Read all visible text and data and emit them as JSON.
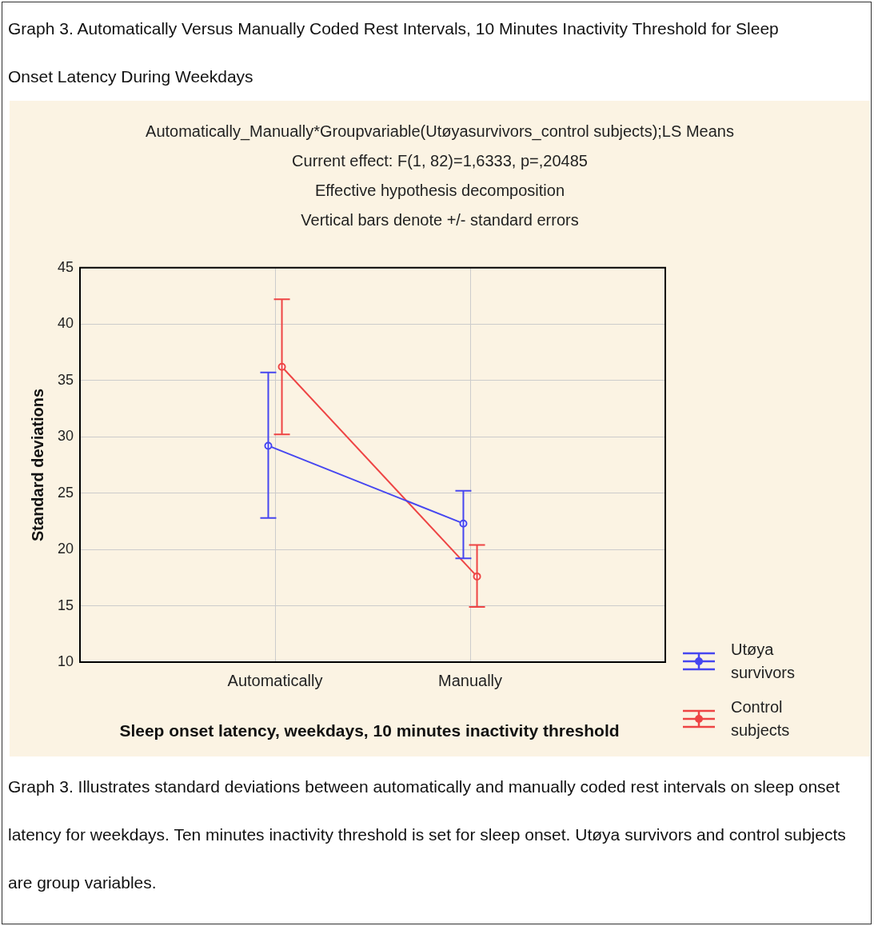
{
  "chart_data": {
    "type": "line",
    "title": "Graph 3. Automatically Versus Manually Coded Rest Intervals, 10 Minutes Inactivity Threshold for Sleep Onset Latency During Weekdays",
    "subtitle": "Automatically_Manually*Groupvariable(Utøyasurvivors_control subjects);LS Means\nCurrent effect: F(1, 82)=1,6333, p=,20485\nEffective hypothesis decomposition\nVertical bars denote +/- standard errors",
    "xlabel": "Sleep onset latency, weekdays, 10 minutes inactivity threshold",
    "ylabel": "Standard deviations",
    "categories": [
      "Automatically",
      "Manually"
    ],
    "series": [
      {
        "name": "Utøya survivors",
        "color": "#4646f0",
        "values": [
          29.2,
          22.3
        ],
        "errors": [
          [
            22.8,
            35.7
          ],
          [
            19.2,
            25.2
          ]
        ]
      },
      {
        "name": "Control subjects",
        "color": "#ee4444",
        "values": [
          36.2,
          17.6
        ],
        "errors": [
          [
            30.2,
            42.2
          ],
          [
            14.9,
            20.4
          ]
        ]
      }
    ],
    "ylim": [
      10,
      45
    ],
    "yticks": [
      10,
      15,
      20,
      25,
      30,
      35,
      40,
      45
    ],
    "grid": true,
    "legend": "right",
    "marker": "circle",
    "line_style": "solid",
    "annotations": [
      "Graph 3. Illustrates standard deviations between automatically and manually coded rest intervals on sleep onset latency for weekdays. Ten minutes inactivity threshold is set for sleep onset. Utøya survivors and control subjects are group variables."
    ]
  }
}
